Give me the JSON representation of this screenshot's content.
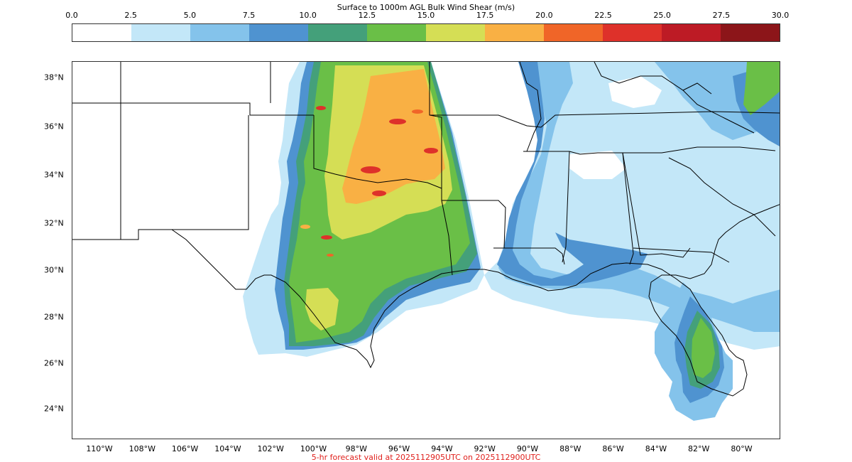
{
  "colorbar": {
    "title": "Surface to 1000m AGL Bulk Wind Shear (m/s)",
    "ticks": [
      "0.0",
      "2.5",
      "5.0",
      "7.5",
      "10.0",
      "12.5",
      "15.0",
      "17.5",
      "20.0",
      "22.5",
      "25.0",
      "27.5",
      "30.0"
    ],
    "colors": [
      "#ffffff",
      "#c3e7f8",
      "#84c3eb",
      "#4f93d0",
      "#44a07a",
      "#6abf47",
      "#d5de55",
      "#f9b044",
      "#f06528",
      "#de312a",
      "#bd1b25",
      "#8c1519"
    ]
  },
  "map": {
    "lat_labels": [
      "38°N",
      "36°N",
      "34°N",
      "32°N",
      "30°N",
      "28°N",
      "26°N",
      "24°N"
    ],
    "lon_labels": [
      "110°W",
      "108°W",
      "106°W",
      "104°W",
      "102°W",
      "100°W",
      "98°W",
      "96°W",
      "94°W",
      "92°W",
      "90°W",
      "88°W",
      "86°W",
      "84°W",
      "82°W",
      "80°W"
    ]
  },
  "footer": "5-hr forecast valid at 2025112905UTC on 2025112900UTC"
}
